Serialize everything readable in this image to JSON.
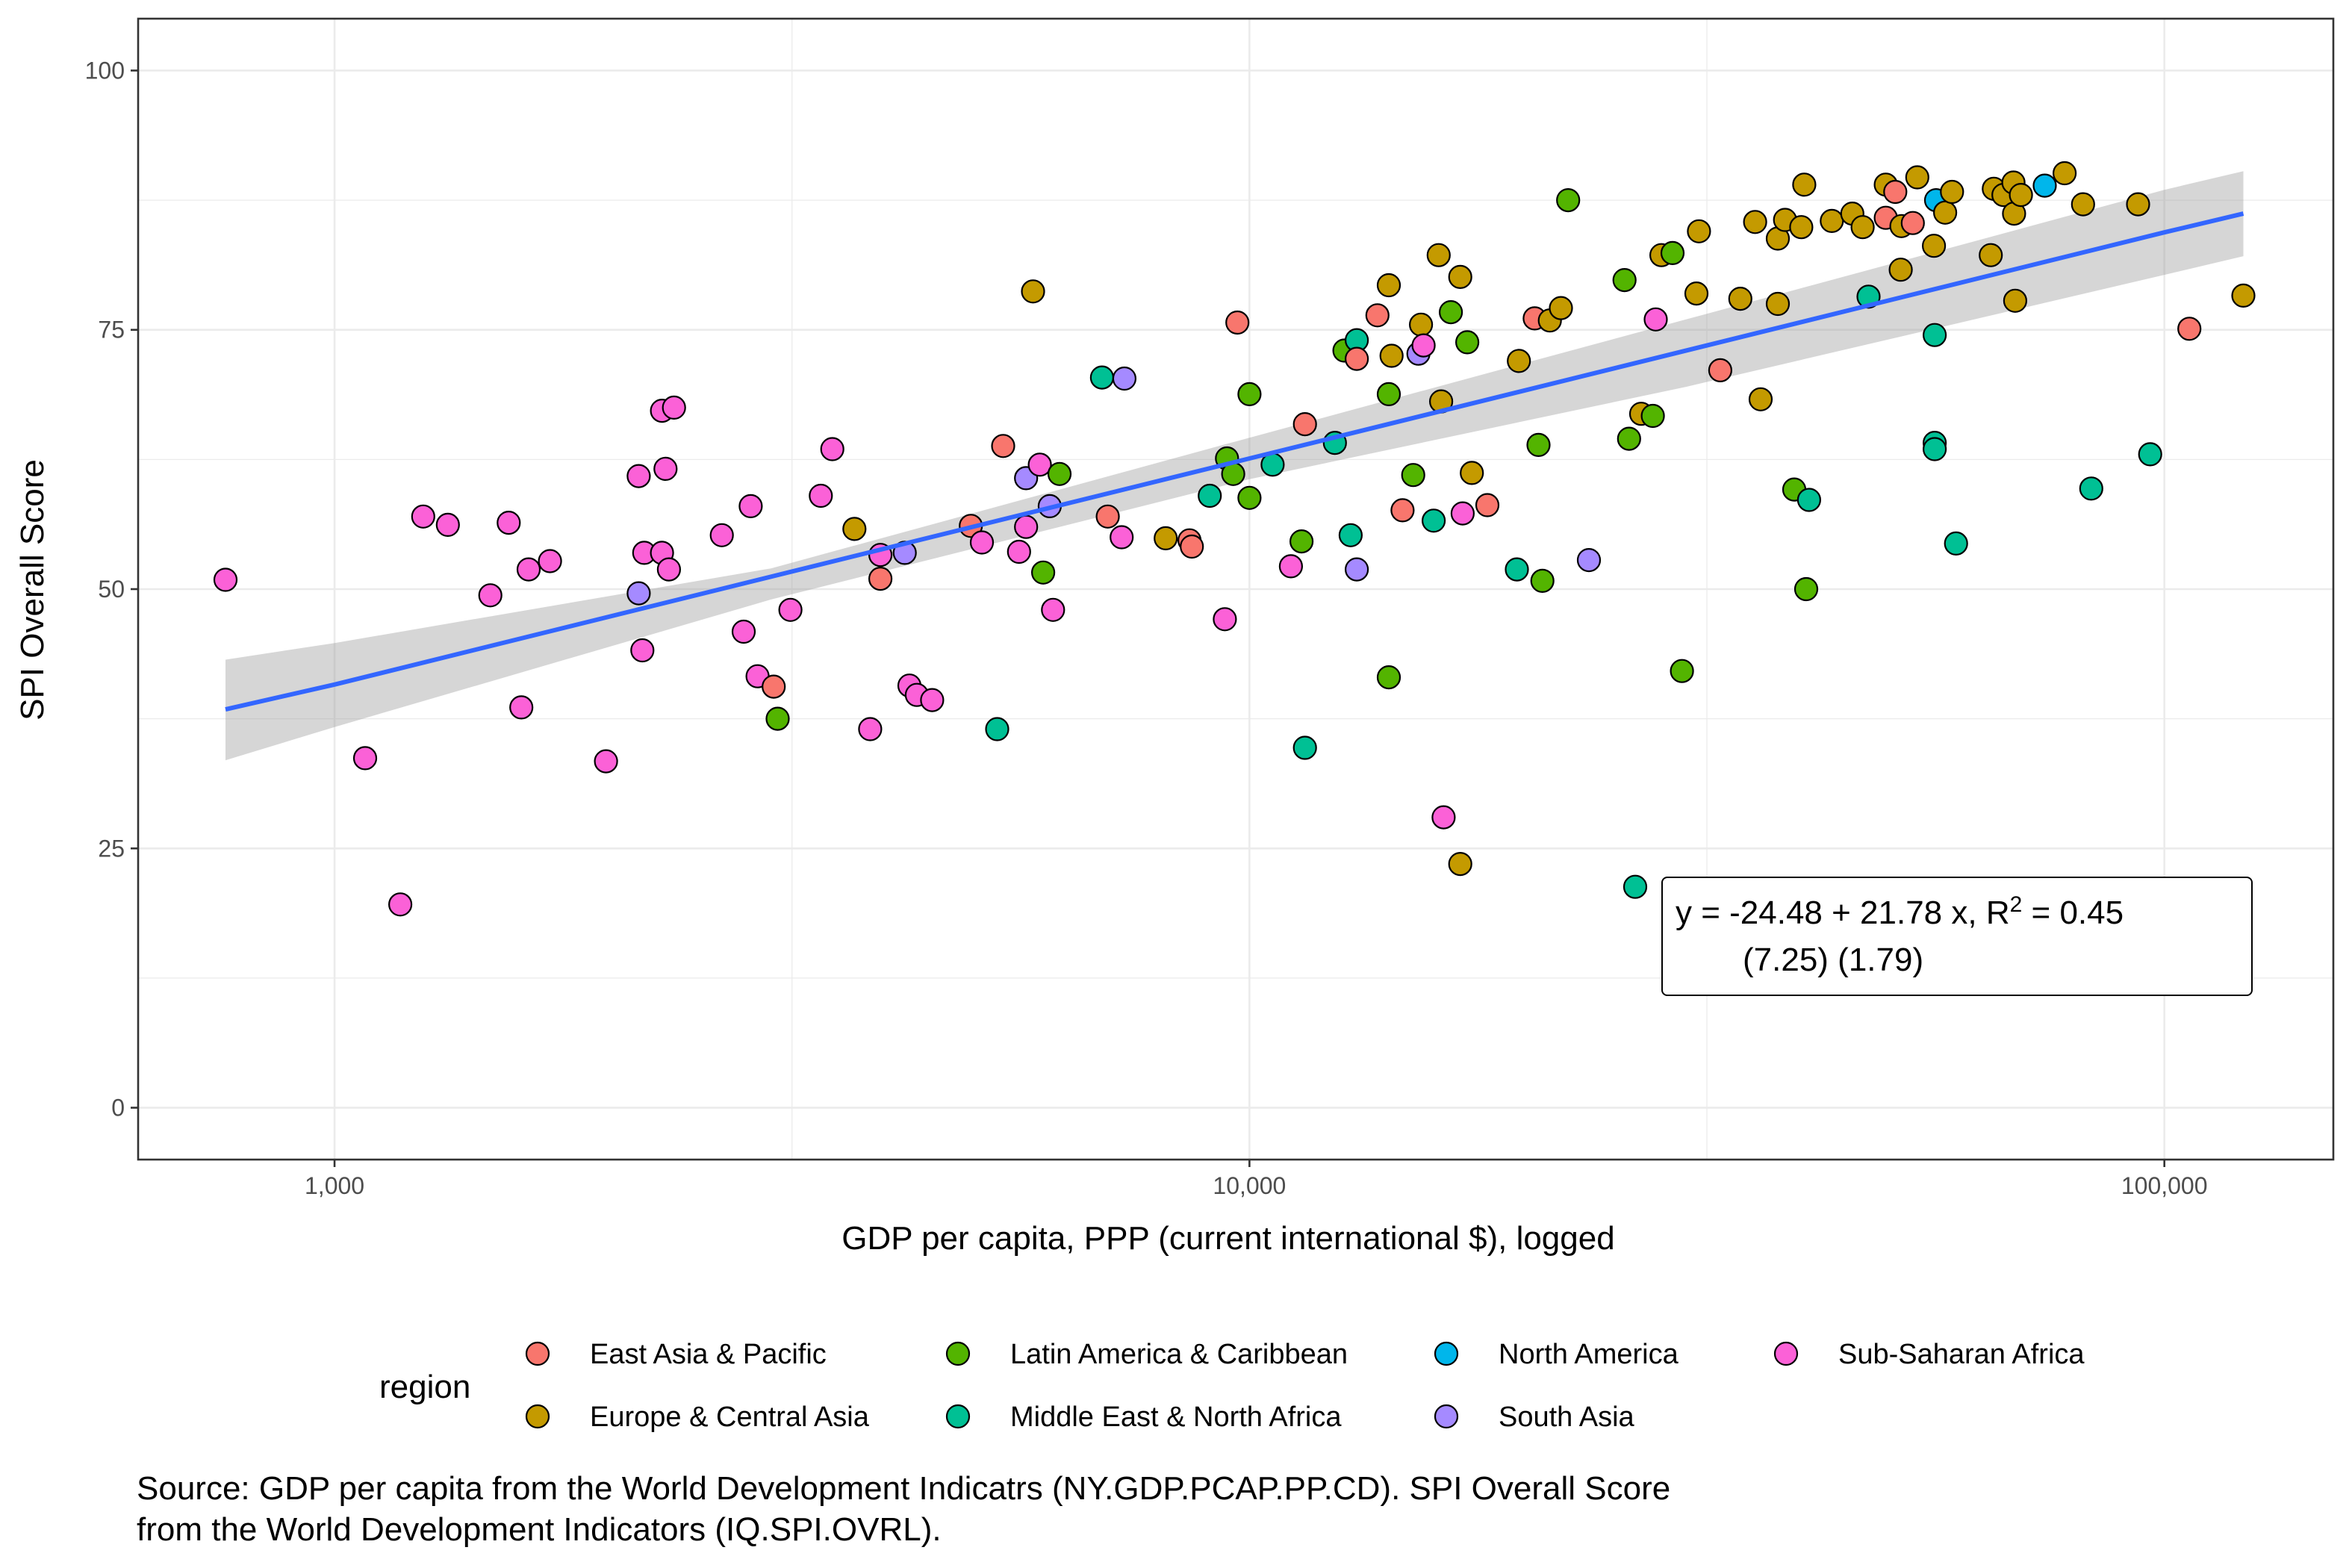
{
  "chart_data": {
    "type": "scatter",
    "xlabel": "GDP per capita, PPP (current international $), logged",
    "ylabel": "SPI Overall Score",
    "x_scale": "log10",
    "xlim": [
      610,
      153000
    ],
    "ylim": [
      -5,
      105
    ],
    "x_ticks": [
      1000,
      10000,
      100000
    ],
    "x_tick_labels": [
      "1,000",
      "10,000",
      "100,000"
    ],
    "y_ticks": [
      0,
      25,
      50,
      75,
      100
    ],
    "y_tick_labels": [
      "0",
      "25",
      "50",
      "75",
      "100"
    ],
    "grid": true,
    "legend": {
      "title": "region",
      "position": "bottom",
      "entries": [
        {
          "key": "eap",
          "label": "East Asia & Pacific",
          "color": "#F8766D"
        },
        {
          "key": "eca",
          "label": "Europe & Central Asia",
          "color": "#C49A00"
        },
        {
          "key": "lac",
          "label": "Latin America & Caribbean",
          "color": "#53B400"
        },
        {
          "key": "mena",
          "label": "Middle East & North Africa",
          "color": "#00C094"
        },
        {
          "key": "na",
          "label": "North America",
          "color": "#00B6EB"
        },
        {
          "key": "sa",
          "label": "South Asia",
          "color": "#A58AFF"
        },
        {
          "key": "ssa",
          "label": "Sub-Saharan Africa",
          "color": "#FB61D7"
        }
      ]
    },
    "trend": {
      "color": "#3366FF",
      "band_color": "#999999",
      "line": [
        [
          760,
          38.4
        ],
        [
          1000,
          40.8
        ],
        [
          10000,
          62.6
        ],
        [
          100000,
          84.4
        ],
        [
          122000,
          86.2
        ]
      ],
      "band_upper": [
        [
          760,
          43.2
        ],
        [
          1000,
          44.8
        ],
        [
          3000,
          52.0
        ],
        [
          10000,
          64.6
        ],
        [
          30000,
          76.0
        ],
        [
          100000,
          88.5
        ],
        [
          122000,
          90.3
        ]
      ],
      "band_lower": [
        [
          760,
          33.5
        ],
        [
          1000,
          36.7
        ],
        [
          3000,
          49.0
        ],
        [
          10000,
          60.6
        ],
        [
          30000,
          69.5
        ],
        [
          100000,
          80.3
        ],
        [
          122000,
          82.1
        ]
      ]
    },
    "annotation": {
      "line1_prefix": "y = -24.48 + 21.78 x, R",
      "line1_sup": "2",
      "line1_suffix": " = 0.45",
      "line2": "(7.25) (1.79)"
    },
    "points": [
      {
        "x": 760,
        "y": 50.9,
        "region": "ssa"
      },
      {
        "x": 1080,
        "y": 33.7,
        "region": "ssa"
      },
      {
        "x": 1180,
        "y": 19.6,
        "region": "ssa"
      },
      {
        "x": 1250,
        "y": 57.0,
        "region": "ssa"
      },
      {
        "x": 1330,
        "y": 56.2,
        "region": "ssa"
      },
      {
        "x": 1480,
        "y": 49.4,
        "region": "ssa"
      },
      {
        "x": 1550,
        "y": 56.4,
        "region": "ssa"
      },
      {
        "x": 1600,
        "y": 38.6,
        "region": "ssa"
      },
      {
        "x": 1630,
        "y": 51.9,
        "region": "ssa"
      },
      {
        "x": 1720,
        "y": 52.7,
        "region": "ssa"
      },
      {
        "x": 1980,
        "y": 33.4,
        "region": "ssa"
      },
      {
        "x": 2150,
        "y": 60.9,
        "region": "ssa"
      },
      {
        "x": 2170,
        "y": 44.1,
        "region": "ssa"
      },
      {
        "x": 2180,
        "y": 53.5,
        "region": "ssa"
      },
      {
        "x": 2150,
        "y": 49.6,
        "region": "sa"
      },
      {
        "x": 2280,
        "y": 67.2,
        "region": "ssa"
      },
      {
        "x": 2300,
        "y": 61.6,
        "region": "ssa"
      },
      {
        "x": 2280,
        "y": 53.5,
        "region": "ssa"
      },
      {
        "x": 2320,
        "y": 51.9,
        "region": "ssa"
      },
      {
        "x": 2350,
        "y": 67.5,
        "region": "ssa"
      },
      {
        "x": 2650,
        "y": 55.2,
        "region": "ssa"
      },
      {
        "x": 2800,
        "y": 45.9,
        "region": "ssa"
      },
      {
        "x": 2850,
        "y": 58.0,
        "region": "ssa"
      },
      {
        "x": 2900,
        "y": 41.6,
        "region": "ssa"
      },
      {
        "x": 3020,
        "y": 40.6,
        "region": "eap"
      },
      {
        "x": 3050,
        "y": 37.5,
        "region": "lac"
      },
      {
        "x": 3150,
        "y": 48.0,
        "region": "ssa"
      },
      {
        "x": 3400,
        "y": 59.0,
        "region": "ssa"
      },
      {
        "x": 3500,
        "y": 63.5,
        "region": "ssa"
      },
      {
        "x": 3700,
        "y": 55.8,
        "region": "eca"
      },
      {
        "x": 3850,
        "y": 36.5,
        "region": "ssa"
      },
      {
        "x": 3950,
        "y": 51.0,
        "region": "eap"
      },
      {
        "x": 3950,
        "y": 53.3,
        "region": "ssa"
      },
      {
        "x": 4200,
        "y": 53.5,
        "region": "sa"
      },
      {
        "x": 4250,
        "y": 40.7,
        "region": "ssa"
      },
      {
        "x": 4330,
        "y": 39.8,
        "region": "ssa"
      },
      {
        "x": 4500,
        "y": 39.3,
        "region": "ssa"
      },
      {
        "x": 4960,
        "y": 56.1,
        "region": "eap"
      },
      {
        "x": 5100,
        "y": 54.5,
        "region": "ssa"
      },
      {
        "x": 5300,
        "y": 36.5,
        "region": "mena"
      },
      {
        "x": 5380,
        "y": 63.8,
        "region": "eap"
      },
      {
        "x": 5600,
        "y": 53.6,
        "region": "ssa"
      },
      {
        "x": 5700,
        "y": 56.0,
        "region": "ssa"
      },
      {
        "x": 5700,
        "y": 60.7,
        "region": "sa"
      },
      {
        "x": 5800,
        "y": 78.7,
        "region": "eca"
      },
      {
        "x": 5900,
        "y": 62.0,
        "region": "ssa"
      },
      {
        "x": 5950,
        "y": 51.6,
        "region": "lac"
      },
      {
        "x": 6050,
        "y": 58.0,
        "region": "sa"
      },
      {
        "x": 6100,
        "y": 48.0,
        "region": "ssa"
      },
      {
        "x": 6200,
        "y": 61.1,
        "region": "lac"
      },
      {
        "x": 6900,
        "y": 70.4,
        "region": "mena"
      },
      {
        "x": 7000,
        "y": 57.0,
        "region": "eap"
      },
      {
        "x": 7250,
        "y": 55.0,
        "region": "ssa"
      },
      {
        "x": 7300,
        "y": 70.3,
        "region": "sa"
      },
      {
        "x": 8100,
        "y": 54.9,
        "region": "eca"
      },
      {
        "x": 8600,
        "y": 54.7,
        "region": "eap"
      },
      {
        "x": 8650,
        "y": 54.1,
        "region": "eap"
      },
      {
        "x": 9050,
        "y": 59.0,
        "region": "mena"
      },
      {
        "x": 9400,
        "y": 47.1,
        "region": "ssa"
      },
      {
        "x": 9450,
        "y": 62.6,
        "region": "lac"
      },
      {
        "x": 9600,
        "y": 61.1,
        "region": "lac"
      },
      {
        "x": 9700,
        "y": 75.7,
        "region": "eap"
      },
      {
        "x": 10000,
        "y": 68.8,
        "region": "lac"
      },
      {
        "x": 10000,
        "y": 58.8,
        "region": "lac"
      },
      {
        "x": 10600,
        "y": 62.0,
        "region": "mena"
      },
      {
        "x": 11100,
        "y": 52.2,
        "region": "ssa"
      },
      {
        "x": 11400,
        "y": 54.6,
        "region": "lac"
      },
      {
        "x": 11500,
        "y": 65.9,
        "region": "eap"
      },
      {
        "x": 11500,
        "y": 34.7,
        "region": "mena"
      },
      {
        "x": 12400,
        "y": 64.1,
        "region": "mena"
      },
      {
        "x": 12700,
        "y": 73.0,
        "region": "lac"
      },
      {
        "x": 12900,
        "y": 55.2,
        "region": "mena"
      },
      {
        "x": 13100,
        "y": 74.0,
        "region": "mena"
      },
      {
        "x": 13100,
        "y": 72.2,
        "region": "eap"
      },
      {
        "x": 13100,
        "y": 51.9,
        "region": "sa"
      },
      {
        "x": 13800,
        "y": 76.4,
        "region": "eap"
      },
      {
        "x": 14200,
        "y": 79.3,
        "region": "eca"
      },
      {
        "x": 14300,
        "y": 72.5,
        "region": "eca"
      },
      {
        "x": 14200,
        "y": 68.8,
        "region": "lac"
      },
      {
        "x": 14200,
        "y": 41.5,
        "region": "lac"
      },
      {
        "x": 14700,
        "y": 57.6,
        "region": "eap"
      },
      {
        "x": 15100,
        "y": 61.0,
        "region": "lac"
      },
      {
        "x": 15300,
        "y": 72.7,
        "region": "sa"
      },
      {
        "x": 15400,
        "y": 75.5,
        "region": "eca"
      },
      {
        "x": 15500,
        "y": 73.5,
        "region": "ssa"
      },
      {
        "x": 15900,
        "y": 56.6,
        "region": "mena"
      },
      {
        "x": 16100,
        "y": 82.2,
        "region": "eca"
      },
      {
        "x": 16200,
        "y": 68.1,
        "region": "eca"
      },
      {
        "x": 16300,
        "y": 28.0,
        "region": "ssa"
      },
      {
        "x": 16600,
        "y": 76.7,
        "region": "lac"
      },
      {
        "x": 17000,
        "y": 80.1,
        "region": "eca"
      },
      {
        "x": 17000,
        "y": 23.5,
        "region": "eca"
      },
      {
        "x": 17100,
        "y": 57.3,
        "region": "ssa"
      },
      {
        "x": 17300,
        "y": 73.8,
        "region": "lac"
      },
      {
        "x": 17500,
        "y": 61.2,
        "region": "eca"
      },
      {
        "x": 18200,
        "y": 58.1,
        "region": "eap"
      },
      {
        "x": 19600,
        "y": 51.9,
        "region": "mena"
      },
      {
        "x": 19700,
        "y": 72.0,
        "region": "eca"
      },
      {
        "x": 20500,
        "y": 76.1,
        "region": "eap"
      },
      {
        "x": 20700,
        "y": 63.9,
        "region": "lac"
      },
      {
        "x": 20900,
        "y": 50.8,
        "region": "lac"
      },
      {
        "x": 21300,
        "y": 75.9,
        "region": "eca"
      },
      {
        "x": 21900,
        "y": 77.1,
        "region": "eca"
      },
      {
        "x": 22300,
        "y": 87.5,
        "region": "lac"
      },
      {
        "x": 23500,
        "y": 52.8,
        "region": "sa"
      },
      {
        "x": 25700,
        "y": 79.8,
        "region": "lac"
      },
      {
        "x": 26000,
        "y": 64.5,
        "region": "lac"
      },
      {
        "x": 26400,
        "y": 21.3,
        "region": "mena"
      },
      {
        "x": 26800,
        "y": 66.9,
        "region": "eca"
      },
      {
        "x": 27600,
        "y": 66.7,
        "region": "lac"
      },
      {
        "x": 27800,
        "y": 76.0,
        "region": "ssa"
      },
      {
        "x": 28200,
        "y": 82.2,
        "region": "eca"
      },
      {
        "x": 29000,
        "y": 82.4,
        "region": "lac"
      },
      {
        "x": 29700,
        "y": 42.1,
        "region": "lac"
      },
      {
        "x": 31000,
        "y": 84.5,
        "region": "eca"
      },
      {
        "x": 30800,
        "y": 78.5,
        "region": "eca"
      },
      {
        "x": 32700,
        "y": 71.1,
        "region": "eap"
      },
      {
        "x": 34400,
        "y": 78.0,
        "region": "eca"
      },
      {
        "x": 35700,
        "y": 85.4,
        "region": "eca"
      },
      {
        "x": 36200,
        "y": 68.3,
        "region": "eca"
      },
      {
        "x": 37800,
        "y": 83.8,
        "region": "eca"
      },
      {
        "x": 37800,
        "y": 77.5,
        "region": "eca"
      },
      {
        "x": 38500,
        "y": 85.6,
        "region": "eca"
      },
      {
        "x": 39400,
        "y": 59.6,
        "region": "lac"
      },
      {
        "x": 40100,
        "y": 84.9,
        "region": "eca"
      },
      {
        "x": 40400,
        "y": 89.0,
        "region": "eca"
      },
      {
        "x": 40600,
        "y": 50.0,
        "region": "lac"
      },
      {
        "x": 40900,
        "y": 58.6,
        "region": "mena"
      },
      {
        "x": 43300,
        "y": 85.5,
        "region": "eca"
      },
      {
        "x": 45600,
        "y": 86.2,
        "region": "eca"
      },
      {
        "x": 46800,
        "y": 84.9,
        "region": "eca"
      },
      {
        "x": 47500,
        "y": 78.2,
        "region": "mena"
      },
      {
        "x": 49600,
        "y": 85.8,
        "region": "eap"
      },
      {
        "x": 49600,
        "y": 89.0,
        "region": "eca"
      },
      {
        "x": 50800,
        "y": 88.3,
        "region": "eap"
      },
      {
        "x": 51500,
        "y": 80.8,
        "region": "eca"
      },
      {
        "x": 51600,
        "y": 85.0,
        "region": "eca"
      },
      {
        "x": 53100,
        "y": 85.3,
        "region": "eap"
      },
      {
        "x": 53700,
        "y": 89.7,
        "region": "eca"
      },
      {
        "x": 56000,
        "y": 83.1,
        "region": "eca"
      },
      {
        "x": 56100,
        "y": 74.5,
        "region": "mena"
      },
      {
        "x": 56100,
        "y": 64.1,
        "region": "mena"
      },
      {
        "x": 56100,
        "y": 63.5,
        "region": "mena"
      },
      {
        "x": 56300,
        "y": 87.5,
        "region": "na"
      },
      {
        "x": 57600,
        "y": 86.3,
        "region": "eca"
      },
      {
        "x": 58600,
        "y": 88.3,
        "region": "eca"
      },
      {
        "x": 59200,
        "y": 54.4,
        "region": "mena"
      },
      {
        "x": 64600,
        "y": 82.2,
        "region": "eca"
      },
      {
        "x": 65100,
        "y": 88.6,
        "region": "eca"
      },
      {
        "x": 66700,
        "y": 88.0,
        "region": "eca"
      },
      {
        "x": 68400,
        "y": 89.2,
        "region": "eca"
      },
      {
        "x": 68500,
        "y": 86.2,
        "region": "eca"
      },
      {
        "x": 68700,
        "y": 77.8,
        "region": "eca"
      },
      {
        "x": 69700,
        "y": 88.0,
        "region": "eca"
      },
      {
        "x": 74000,
        "y": 88.9,
        "region": "na"
      },
      {
        "x": 77800,
        "y": 90.1,
        "region": "eca"
      },
      {
        "x": 81500,
        "y": 87.1,
        "region": "eca"
      },
      {
        "x": 83200,
        "y": 59.7,
        "region": "mena"
      },
      {
        "x": 93600,
        "y": 87.1,
        "region": "eca"
      },
      {
        "x": 96500,
        "y": 63.0,
        "region": "mena"
      },
      {
        "x": 106500,
        "y": 75.1,
        "region": "eap"
      },
      {
        "x": 122000,
        "y": 78.3,
        "region": "eca"
      }
    ]
  },
  "caption": {
    "line1": "Source: GDP per capita from the World Development Indicatrs (NY.GDP.PCAP.PP.CD). SPI Overall Score",
    "line2": "from the World Development Indicators (IQ.SPI.OVRL)."
  }
}
